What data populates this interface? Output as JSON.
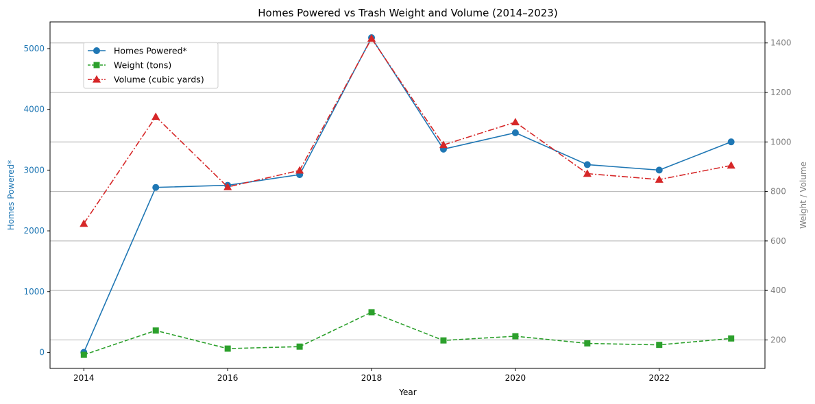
{
  "chart_data": {
    "type": "line",
    "title": "Homes Powered vs Trash Weight and Volume (2014–2023)",
    "xlabel": "Year",
    "ylabel_left": "Homes Powered*",
    "ylabel_right": "Weight / Volume",
    "x": [
      2014,
      2015,
      2016,
      2017,
      2018,
      2019,
      2020,
      2021,
      2022,
      2023
    ],
    "x_ticks": [
      2014,
      2016,
      2018,
      2020,
      2022
    ],
    "xlim": [
      2013.53,
      2023.47
    ],
    "ylim_left": [
      -265,
      5440
    ],
    "yticks_left": [
      0,
      1000,
      2000,
      3000,
      4000,
      5000
    ],
    "ylim_right": [
      85,
      1485
    ],
    "yticks_right": [
      200,
      400,
      600,
      800,
      1000,
      1200,
      1400
    ],
    "grid": "right-axis horizontal",
    "legend_position": "upper-left",
    "colors": {
      "left_axis": "#1f77b4",
      "right_axis": "#808080",
      "homes": "#1f77b4",
      "weight": "#2ca02c",
      "volume": "#d62728"
    },
    "series": [
      {
        "name": "Homes Powered*",
        "axis": "left",
        "marker": "circle",
        "linestyle": "solid",
        "values": [
          0,
          2715,
          2750,
          2925,
          5180,
          3345,
          3615,
          3090,
          3000,
          3465
        ]
      },
      {
        "name": "Weight (tons)",
        "axis": "right",
        "marker": "square",
        "linestyle": "dashed",
        "values": [
          140,
          238,
          165,
          173,
          312,
          198,
          215,
          186,
          180,
          206
        ]
      },
      {
        "name": "Volume (cubic yards)",
        "axis": "right",
        "marker": "triangle",
        "linestyle": "dashdot",
        "values": [
          670,
          1102,
          818,
          885,
          1418,
          988,
          1080,
          872,
          848,
          905
        ]
      }
    ]
  }
}
